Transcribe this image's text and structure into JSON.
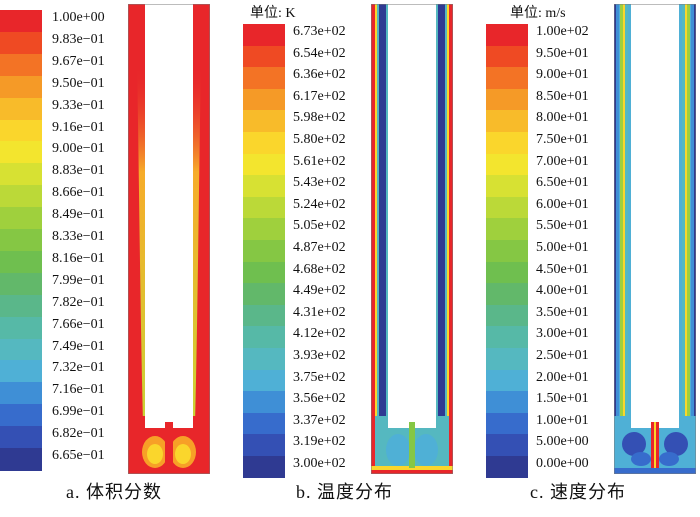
{
  "panels": [
    {
      "id": "a",
      "caption": "a. 体积分数",
      "unit": "",
      "legend_labels": [
        "1.00e+00",
        "9.83e−01",
        "9.67e−01",
        "9.50e−01",
        "9.33e−01",
        "9.16e−01",
        "9.00e−01",
        "8.83e−01",
        "8.66e−01",
        "8.49e−01",
        "8.33e−01",
        "8.16e−01",
        "7.99e−01",
        "7.82e−01",
        "7.66e−01",
        "7.49e−01",
        "7.32e−01",
        "7.16e−01",
        "6.99e−01",
        "6.82e−01",
        "6.65e−01"
      ]
    },
    {
      "id": "b",
      "caption": "b. 温度分布",
      "unit": "单位: K",
      "legend_labels": [
        "6.73e+02",
        "6.54e+02",
        "6.36e+02",
        "6.17e+02",
        "5.98e+02",
        "5.80e+02",
        "5.61e+02",
        "5.43e+02",
        "5.24e+02",
        "5.05e+02",
        "4.87e+02",
        "4.68e+02",
        "4.49e+02",
        "4.31e+02",
        "4.12e+02",
        "3.93e+02",
        "3.75e+02",
        "3.56e+02",
        "3.37e+02",
        "3.19e+02",
        "3.00e+02"
      ]
    },
    {
      "id": "c",
      "caption": "c. 速度分布",
      "unit": "单位: m/s",
      "legend_labels": [
        "1.00e+02",
        "9.50e+01",
        "9.00e+01",
        "8.50e+01",
        "8.00e+01",
        "7.50e+01",
        "7.00e+01",
        "6.50e+01",
        "6.00e+01",
        "5.50e+01",
        "5.00e+01",
        "4.50e+01",
        "4.00e+01",
        "3.50e+01",
        "3.00e+01",
        "2.50e+01",
        "2.00e+01",
        "1.50e+01",
        "1.00e+01",
        "5.00e+00",
        "0.00e+00"
      ]
    }
  ],
  "colormap": [
    "#e8262a",
    "#ef4a23",
    "#f37325",
    "#f59a27",
    "#f8bb2a",
    "#fad62c",
    "#f3e52e",
    "#d7e133",
    "#bbd938",
    "#9fd03d",
    "#85c744",
    "#6fbf4f",
    "#62b86a",
    "#5ab78a",
    "#56b9a7",
    "#55b8c0",
    "#4fb0d6",
    "#3f8fd6",
    "#376ccc",
    "#3450b4",
    "#2f3a92"
  ]
}
